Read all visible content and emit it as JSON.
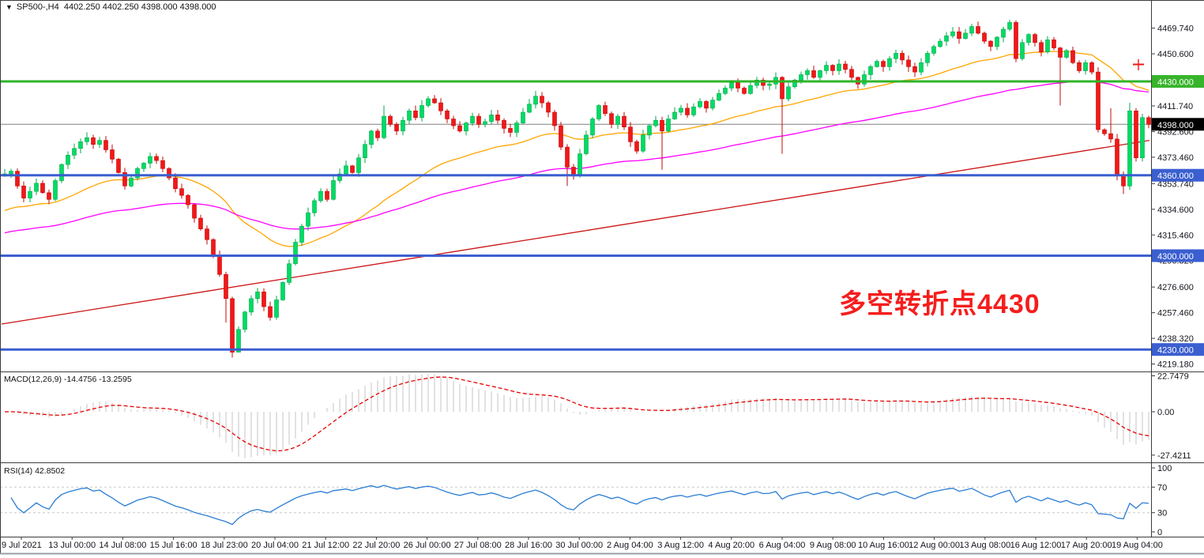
{
  "title": {
    "symbol": "SP500-,H4",
    "quotes": "4402.250 4402.250 4398.000 4398.000"
  },
  "annotation": {
    "text": "多空转折点4430",
    "color": "#f51d1d"
  },
  "colors": {
    "candle_up": "#00dc64",
    "candle_up_border": "#00a84c",
    "candle_down": "#f11818",
    "candle_down_border": "#c40808",
    "ma_fast": "#ffa500",
    "ma_mid": "#ff00ff",
    "ma_slow": "#cc1212",
    "macd_hist": "#c4c4c4",
    "macd_signal": "#e60000",
    "rsi_line": "#2a7cd4",
    "rsi_level": "#c8c8c8",
    "line_green": "#2fb42a",
    "line_blue": "#3b5fd0",
    "line_current": "#808080",
    "badge_green": "#38b42c",
    "badge_black": "#000000",
    "badge_blue": "#3b5fd0",
    "border": "#3c3c3c",
    "axis_text": "#14141e",
    "bottom_bar": "#9aa0a6"
  },
  "price_axis": {
    "ticks": [
      "4469.740",
      "4450.600",
      "4411.740",
      "4392.600",
      "4373.460",
      "4353.740",
      "4334.600",
      "4315.460",
      "4296.320",
      "4276.600",
      "4257.460",
      "4238.320",
      "4219.180"
    ],
    "badges": [
      {
        "label": "4430.000",
        "value": 4430,
        "type": "resistance"
      },
      {
        "label": "4398.000",
        "value": 4398,
        "type": "current"
      },
      {
        "label": "4360.000",
        "value": 4360,
        "type": "support"
      },
      {
        "label": "4300.000",
        "value": 4300,
        "type": "support"
      },
      {
        "label": "4230.000",
        "value": 4230,
        "type": "support"
      }
    ]
  },
  "x_axis": {
    "labels": [
      "9 Jul 2021",
      "13 Jul 00:00",
      "14 Jul 08:00",
      "15 Jul 16:00",
      "18 Jul 23:00",
      "20 Jul 04:00",
      "21 Jul 12:00",
      "22 Jul 20:00",
      "26 Jul 00:00",
      "27 Jul 08:00",
      "28 Jul 16:00",
      "30 Jul 00:00",
      "2 Aug 04:00",
      "3 Aug 12:00",
      "4 Aug 20:00",
      "6 Aug 04:00",
      "9 Aug 08:00",
      "10 Aug 16:00",
      "12 Aug 00:00",
      "13 Aug 08:00",
      "16 Aug 12:00",
      "17 Aug 20:00",
      "19 Aug 04:00"
    ]
  },
  "chart_data": [
    {
      "type": "candlestick",
      "symbol": "SP500-",
      "timeframe": "H4",
      "last_price": 4398.0,
      "open": 4402.25,
      "high": 4402.25,
      "low": 4398.0,
      "close": 4398.0,
      "levels": {
        "resistance_green": 4430,
        "supports_blue": [
          4360,
          4300,
          4230
        ],
        "current_gray": 4398
      },
      "y_range": [
        4214,
        4485
      ],
      "closes": [
        4361,
        4363,
        4352,
        4343,
        4348,
        4354,
        4347,
        4342,
        4356,
        4368,
        4375,
        4380,
        4385,
        4388,
        4383,
        4386,
        4379,
        4372,
        4362,
        4352,
        4358,
        4365,
        4369,
        4374,
        4371,
        4365,
        4358,
        4350,
        4345,
        4338,
        4328,
        4320,
        4312,
        4300,
        4286,
        4268,
        4228,
        4245,
        4258,
        4268,
        4273,
        4262,
        4254,
        4267,
        4280,
        4294,
        4310,
        4322,
        4332,
        4341,
        4348,
        4342,
        4356,
        4361,
        4367,
        4362,
        4373,
        4383,
        4393,
        4388,
        4404,
        4398,
        4393,
        4401,
        4408,
        4403,
        4412,
        4417,
        4414,
        4408,
        4402,
        4397,
        4393,
        4399,
        4404,
        4398,
        4400,
        4405,
        4401,
        4395,
        4392,
        4399,
        4407,
        4413,
        4419,
        4414,
        4407,
        4397,
        4381,
        4366,
        4360,
        4376,
        4390,
        4402,
        4412,
        4406,
        4398,
        4404,
        4396,
        4385,
        4378,
        4390,
        4397,
        4401,
        4393,
        4402,
        4407,
        4410,
        4405,
        4411,
        4415,
        4410,
        4416,
        4421,
        4425,
        4429,
        4425,
        4421,
        4427,
        4431,
        4427,
        4428,
        4433,
        4417,
        4426,
        4431,
        4435,
        4438,
        4433,
        4438,
        4442,
        4438,
        4443,
        4439,
        4433,
        4428,
        4435,
        4441,
        4445,
        4441,
        4447,
        4451,
        4446,
        4441,
        4437,
        4444,
        4451,
        4456,
        4460,
        4464,
        4467,
        4462,
        4466,
        4471,
        4466,
        4460,
        4456,
        4463,
        4469,
        4474,
        4447,
        4459,
        4465,
        4459,
        4452,
        4461,
        4455,
        4448,
        4453,
        4444,
        4438,
        4444,
        4437,
        4394,
        4391,
        4387,
        4360,
        4352,
        4408,
        4373,
        4403,
        4398
      ],
      "wick_overrides": {
        "13": {
          "high": 4392
        },
        "35": {
          "low": 4250
        },
        "36": {
          "low": 4224
        },
        "37": {
          "low": 4240
        },
        "60": {
          "high": 4412
        },
        "89": {
          "low": 4352
        },
        "104": {
          "low": 4364
        },
        "123": {
          "low": 4376,
          "high": 4434
        },
        "159": {
          "high": 4476
        },
        "167": {
          "low": 4412
        },
        "175": {
          "high": 4410
        },
        "177": {
          "low": 4346
        },
        "178": {
          "high": 4414
        }
      },
      "moving_averages": [
        {
          "name": "fast-ema",
          "kind": "ema",
          "period": 34,
          "seed": 4332,
          "color_key": "ma_fast"
        },
        {
          "name": "mid-ema",
          "kind": "ema",
          "period": 89,
          "seed": 4316,
          "color_key": "ma_mid"
        },
        {
          "name": "slow-ma",
          "kind": "linear",
          "start": 4249,
          "end": 4386,
          "color_key": "ma_slow"
        }
      ]
    },
    {
      "type": "macd",
      "label": "MACD(12,26,9)",
      "display": "MACD(12,26,9) -14.4756 -13.2595",
      "fast": 12,
      "slow": 26,
      "signal_period": 9,
      "value": -14.4756,
      "signal": -13.2595,
      "y_ticks": [
        {
          "label": "22.7479",
          "value": 22.7479
        },
        {
          "label": "0.00",
          "value": 0
        },
        {
          "label": "-27.4211",
          "value": -27.4211
        }
      ]
    },
    {
      "type": "rsi",
      "label": "RSI(14)",
      "display": "RSI(14) 42.8502",
      "period": 14,
      "value": 42.8502,
      "levels": [
        70,
        30
      ],
      "y_ticks": [
        {
          "label": "100",
          "value": 100
        },
        {
          "label": "70",
          "value": 70
        },
        {
          "label": "30",
          "value": 30
        },
        {
          "label": "0",
          "value": 0
        }
      ]
    }
  ]
}
